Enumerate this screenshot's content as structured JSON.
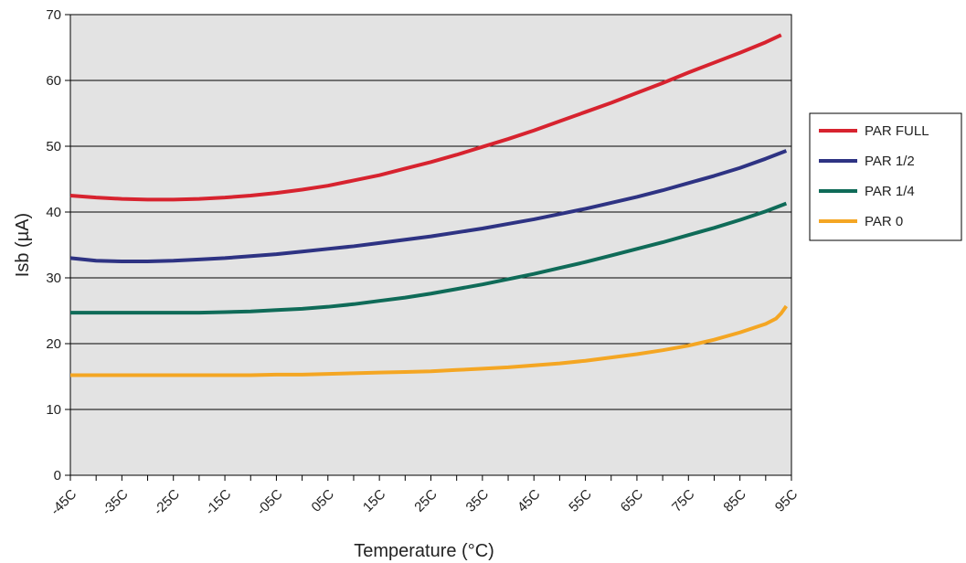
{
  "chart_data": {
    "type": "line",
    "title": "",
    "xlabel": "Temperature (°C)",
    "ylabel": "Isb (µA)",
    "ylim": [
      0,
      70
    ],
    "y_ticks": [
      "0",
      "10",
      "20",
      "30",
      "40",
      "50",
      "60",
      "70"
    ],
    "categories": [
      "-45C",
      "-35C",
      "-25C",
      "-15C",
      "-05C",
      "05C",
      "15C",
      "25C",
      "35C",
      "45C",
      "55C",
      "65C",
      "75C",
      "85C",
      "95C"
    ],
    "grid": true,
    "legend_position": "right",
    "plot_background": "#e3e3e3",
    "series": [
      {
        "name": "PAR FULL",
        "color": "#d7232f",
        "x": [
          -45,
          -40,
          -35,
          -30,
          -25,
          -20,
          -15,
          -10,
          -5,
          0,
          5,
          10,
          15,
          20,
          25,
          30,
          35,
          40,
          45,
          50,
          55,
          60,
          65,
          70,
          75,
          80,
          85,
          90,
          93
        ],
        "y": [
          42.5,
          42.2,
          42.0,
          41.9,
          41.9,
          42.0,
          42.2,
          42.5,
          42.9,
          43.4,
          44.0,
          44.8,
          45.6,
          46.6,
          47.6,
          48.7,
          49.9,
          51.1,
          52.4,
          53.8,
          55.2,
          56.6,
          58.1,
          59.6,
          61.2,
          62.7,
          64.2,
          65.8,
          66.9
        ]
      },
      {
        "name": "PAR 1/2",
        "color": "#2e3383",
        "x": [
          -45,
          -40,
          -35,
          -30,
          -25,
          -20,
          -15,
          -10,
          -5,
          0,
          5,
          10,
          15,
          20,
          25,
          30,
          35,
          40,
          45,
          50,
          55,
          60,
          65,
          70,
          75,
          80,
          85,
          90,
          94
        ],
        "y": [
          33.0,
          32.6,
          32.5,
          32.5,
          32.6,
          32.8,
          33.0,
          33.3,
          33.6,
          34.0,
          34.4,
          34.8,
          35.3,
          35.8,
          36.3,
          36.9,
          37.5,
          38.2,
          38.9,
          39.7,
          40.5,
          41.4,
          42.3,
          43.3,
          44.4,
          45.5,
          46.7,
          48.1,
          49.3
        ]
      },
      {
        "name": "PAR 1/4",
        "color": "#0f6b58",
        "x": [
          -45,
          -40,
          -35,
          -30,
          -25,
          -20,
          -15,
          -10,
          -5,
          0,
          5,
          10,
          15,
          20,
          25,
          30,
          35,
          40,
          45,
          50,
          55,
          60,
          65,
          70,
          75,
          80,
          85,
          90,
          94
        ],
        "y": [
          24.7,
          24.7,
          24.7,
          24.7,
          24.7,
          24.7,
          24.8,
          24.9,
          25.1,
          25.3,
          25.6,
          26.0,
          26.5,
          27.0,
          27.6,
          28.3,
          29.0,
          29.8,
          30.6,
          31.5,
          32.4,
          33.4,
          34.4,
          35.4,
          36.5,
          37.6,
          38.8,
          40.1,
          41.3
        ]
      },
      {
        "name": "PAR 0",
        "color": "#f4a623",
        "x": [
          -45,
          -40,
          -35,
          -30,
          -25,
          -20,
          -15,
          -10,
          -5,
          0,
          5,
          10,
          15,
          20,
          25,
          30,
          35,
          40,
          45,
          50,
          55,
          60,
          65,
          70,
          75,
          80,
          85,
          90,
          92,
          93,
          94
        ],
        "y": [
          15.2,
          15.2,
          15.2,
          15.2,
          15.2,
          15.2,
          15.2,
          15.2,
          15.3,
          15.3,
          15.4,
          15.5,
          15.6,
          15.7,
          15.8,
          16.0,
          16.2,
          16.4,
          16.7,
          17.0,
          17.4,
          17.9,
          18.4,
          19.0,
          19.7,
          20.6,
          21.7,
          23.0,
          23.8,
          24.6,
          25.7
        ]
      }
    ]
  }
}
